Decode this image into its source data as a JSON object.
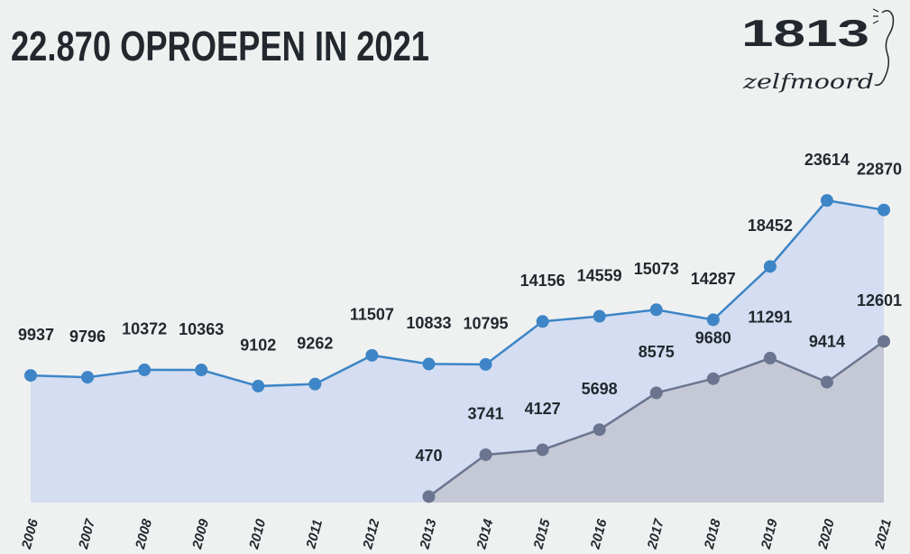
{
  "chart_data": {
    "type": "line",
    "title": "22.870 OPROEPEN IN 2021",
    "logo": {
      "number": "1813",
      "tagline": "zelfmoord"
    },
    "categories": [
      "2006",
      "2007",
      "2008",
      "2009",
      "2010",
      "2011",
      "2012",
      "2013",
      "2014",
      "2015",
      "2016",
      "2017",
      "2018",
      "2019",
      "2020",
      "2021"
    ],
    "series": [
      {
        "color": "#3d85c6",
        "area_color": "#d4ddf1",
        "values": [
          9937,
          9796,
          10372,
          10363,
          9102,
          9262,
          11507,
          10833,
          10795,
          14156,
          14559,
          15073,
          14287,
          18452,
          23614,
          22870
        ]
      },
      {
        "color": "#6b7590",
        "area_color": "#c5c8d5",
        "values": [
          null,
          null,
          null,
          null,
          null,
          null,
          null,
          470,
          3741,
          4127,
          5698,
          8575,
          9680,
          11291,
          9414,
          12601
        ]
      }
    ],
    "ylim": [
      0,
      25000
    ]
  }
}
